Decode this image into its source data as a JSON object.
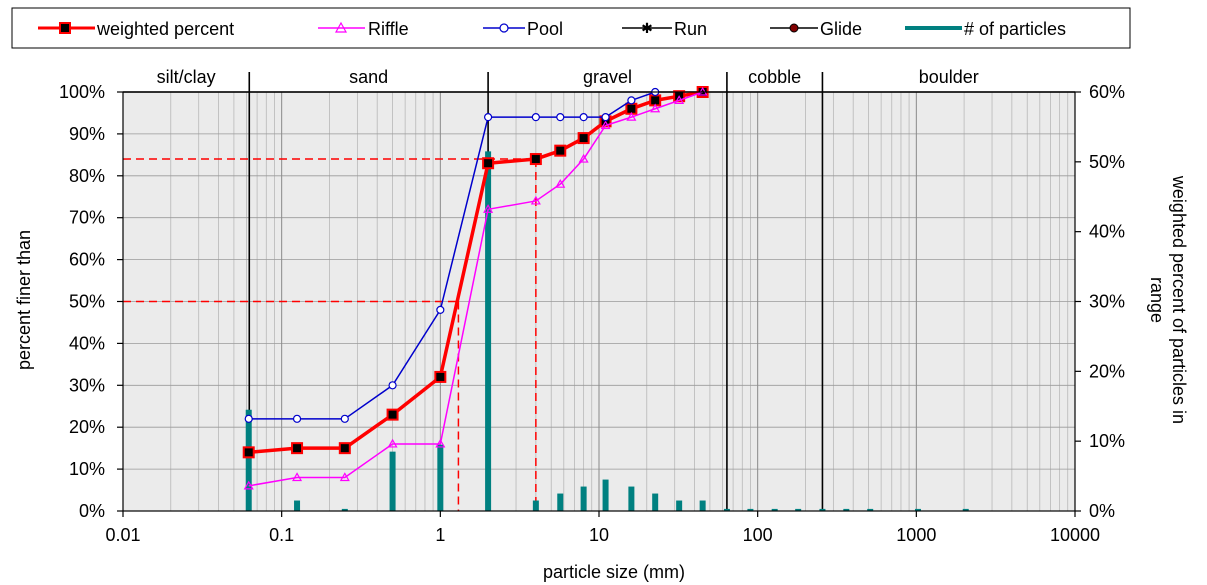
{
  "chart_data": {
    "type": "line",
    "x_scale": "log",
    "xlim": [
      0.01,
      10000
    ],
    "ylim": [
      0,
      100
    ],
    "y2lim": [
      0,
      60
    ],
    "xlabel": "particle size (mm)",
    "ylabel": "percent finer than",
    "y2label_line1": "weighted percent of particles in",
    "y2label_line2": "range",
    "x_ticks": [
      {
        "value": 0.01,
        "label": "0.01"
      },
      {
        "value": 0.1,
        "label": "0.1"
      },
      {
        "value": 1,
        "label": "1"
      },
      {
        "value": 10,
        "label": "10"
      },
      {
        "value": 100,
        "label": "100"
      },
      {
        "value": 1000,
        "label": "1000"
      },
      {
        "value": 10000,
        "label": "10000"
      }
    ],
    "y_ticks": [
      {
        "value": 0,
        "label": "0%"
      },
      {
        "value": 10,
        "label": "10%"
      },
      {
        "value": 20,
        "label": "20%"
      },
      {
        "value": 30,
        "label": "30%"
      },
      {
        "value": 40,
        "label": "40%"
      },
      {
        "value": 50,
        "label": "50%"
      },
      {
        "value": 60,
        "label": "60%"
      },
      {
        "value": 70,
        "label": "70%"
      },
      {
        "value": 80,
        "label": "80%"
      },
      {
        "value": 90,
        "label": "90%"
      },
      {
        "value": 100,
        "label": "100%"
      }
    ],
    "y2_ticks": [
      {
        "value": 0,
        "label": "0%"
      },
      {
        "value": 10,
        "label": "10%"
      },
      {
        "value": 20,
        "label": "20%"
      },
      {
        "value": 30,
        "label": "30%"
      },
      {
        "value": 40,
        "label": "40%"
      },
      {
        "value": 50,
        "label": "50%"
      },
      {
        "value": 60,
        "label": "60%"
      }
    ],
    "size_classes": [
      {
        "label": "silt/clay",
        "from": 0.01,
        "to": 0.0625
      },
      {
        "label": "sand",
        "from": 0.0625,
        "to": 2
      },
      {
        "label": "gravel",
        "from": 2,
        "to": 64
      },
      {
        "label": "cobble",
        "from": 64,
        "to": 256
      },
      {
        "label": "boulder",
        "from": 256,
        "to": 10000
      }
    ],
    "class_boundaries": [
      0.0625,
      2,
      64,
      256
    ],
    "legend": [
      {
        "name": "weighted percent",
        "color": "#ff0000",
        "marker": "square"
      },
      {
        "name": "Riffle",
        "color": "#ff00ff",
        "marker": "triangle"
      },
      {
        "name": "Pool",
        "color": "#0000cc",
        "marker": "circle"
      },
      {
        "name": "Run",
        "color": "#000000",
        "marker": "star"
      },
      {
        "name": "Glide",
        "color": "#000000",
        "marker": "dot"
      },
      {
        "name": "# of particles",
        "color": "#008080",
        "marker": "bar"
      }
    ],
    "series": [
      {
        "name": "weighted percent",
        "color": "#ff0000",
        "marker": "square",
        "x": [
          0.062,
          0.125,
          0.25,
          0.5,
          1,
          2,
          4,
          5.7,
          8,
          11,
          16,
          22.6,
          32,
          45
        ],
        "y": [
          14,
          15,
          15,
          23,
          32,
          83,
          84,
          86,
          89,
          93,
          96,
          98,
          99,
          100
        ]
      },
      {
        "name": "Riffle",
        "color": "#ff00ff",
        "marker": "triangle",
        "x": [
          0.062,
          0.125,
          0.25,
          0.5,
          1,
          2,
          4,
          5.7,
          8,
          11,
          16,
          22.6,
          32,
          45
        ],
        "y": [
          6,
          8,
          8,
          16,
          16,
          72,
          74,
          78,
          84,
          92,
          94,
          96,
          98,
          100
        ]
      },
      {
        "name": "Pool",
        "color": "#0000cc",
        "marker": "circle",
        "x": [
          0.062,
          0.125,
          0.25,
          0.5,
          1,
          2,
          4,
          5.7,
          8,
          11,
          16,
          22.6
        ],
        "y": [
          22,
          22,
          22,
          30,
          48,
          94,
          94,
          94,
          94,
          94,
          98,
          100
        ]
      }
    ],
    "particle_bars": {
      "name": "# of particles",
      "axis": "right",
      "x": [
        0.062,
        0.125,
        0.25,
        0.5,
        1,
        2,
        4,
        5.7,
        8,
        11,
        16,
        22.6,
        32,
        45,
        64,
        90,
        128,
        180,
        256,
        362,
        512,
        1024,
        2048
      ],
      "values": [
        14.5,
        1.5,
        0.3,
        8.5,
        9.5,
        51.5,
        1.5,
        2.5,
        3.5,
        4.5,
        3.5,
        2.5,
        1.5,
        1.5,
        0.3,
        0.3,
        0.3,
        0.3,
        0.3,
        0.3,
        0.3,
        0.3,
        0.3
      ]
    },
    "reference_lines": {
      "color": "#ff0000",
      "points": [
        {
          "x": 1.3,
          "y": 50
        },
        {
          "x": 4,
          "y": 84
        }
      ]
    }
  }
}
